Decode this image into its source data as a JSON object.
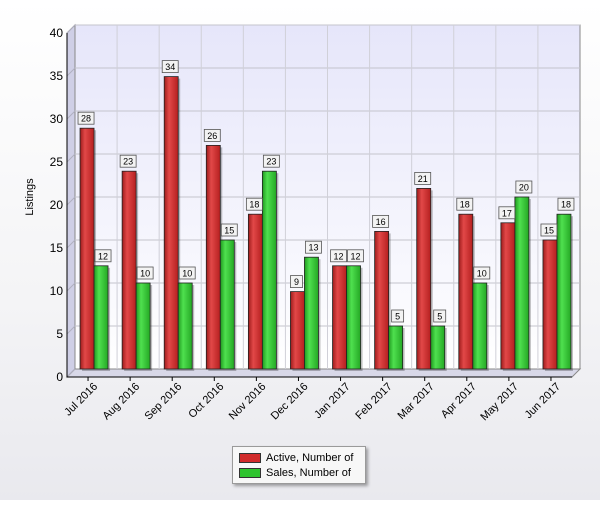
{
  "chart_data": {
    "type": "bar",
    "title": "",
    "xlabel": "",
    "ylabel": "Listings",
    "ylim": [
      0,
      40
    ],
    "yticks": [
      0,
      5,
      10,
      15,
      20,
      25,
      30,
      35,
      40
    ],
    "grid": true,
    "legend_position": "bottom-center",
    "categories": [
      "Jul 2016",
      "Aug 2016",
      "Sep 2016",
      "Oct 2016",
      "Nov 2016",
      "Dec 2016",
      "Jan 2017",
      "Feb 2017",
      "Mar 2017",
      "Apr 2017",
      "May 2017",
      "Jun 2017"
    ],
    "series": [
      {
        "name": "Active, Number of",
        "color": "#d12b2b",
        "values": [
          28,
          23,
          34,
          26,
          18,
          9,
          12,
          16,
          21,
          18,
          17,
          15
        ]
      },
      {
        "name": "Sales, Number of",
        "color": "#2fc42f",
        "values": [
          12,
          10,
          10,
          15,
          23,
          13,
          12,
          5,
          5,
          10,
          20,
          18
        ]
      }
    ]
  }
}
